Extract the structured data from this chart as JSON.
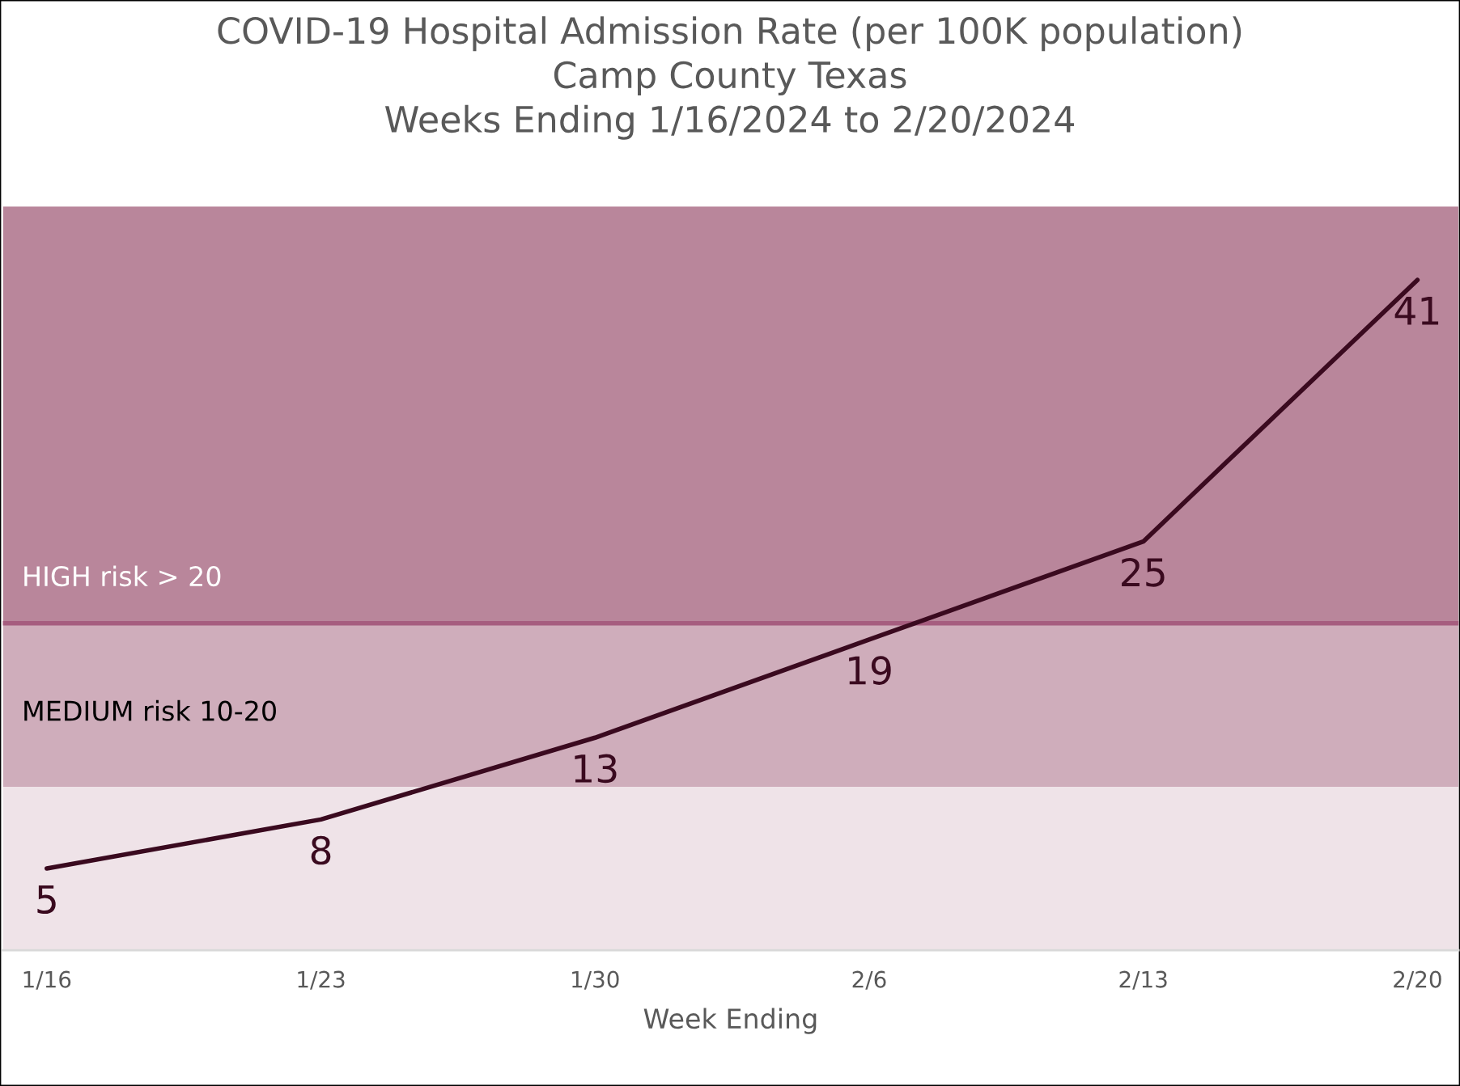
{
  "chart_data": {
    "type": "line",
    "title": "COVID-19 Hospital Admission Rate (per 100K population)\nCamp County Texas\nWeeks Ending 1/16/2024 to 2/20/2024",
    "xlabel": "Week Ending",
    "categories": [
      "1/16",
      "1/23",
      "1/30",
      "2/6",
      "2/13",
      "2/20"
    ],
    "series": [
      {
        "color": "#3a0a1f",
        "values": [
          5,
          8,
          13,
          19,
          25,
          41
        ]
      }
    ],
    "data_labels": true,
    "ylim": [
      0,
      45.5
    ],
    "tick_labels": "x",
    "grid": false,
    "legend": false,
    "marker": "none",
    "line_style": "solid",
    "bands": [
      {
        "axis": "y",
        "from": 0,
        "to": 10,
        "color": "#efe3e8"
      },
      {
        "axis": "y",
        "from": 10,
        "to": 20,
        "label": "MEDIUM risk 10-20",
        "color": "#cfadbb"
      },
      {
        "axis": "y",
        "from": 20,
        "to": 45.5,
        "label": "HIGH risk > 20",
        "color": "#b9869b"
      }
    ],
    "ref_lines": [
      {
        "axis": "y",
        "value": 20,
        "color": "#a65d7f",
        "line_style": "solid"
      }
    ]
  }
}
